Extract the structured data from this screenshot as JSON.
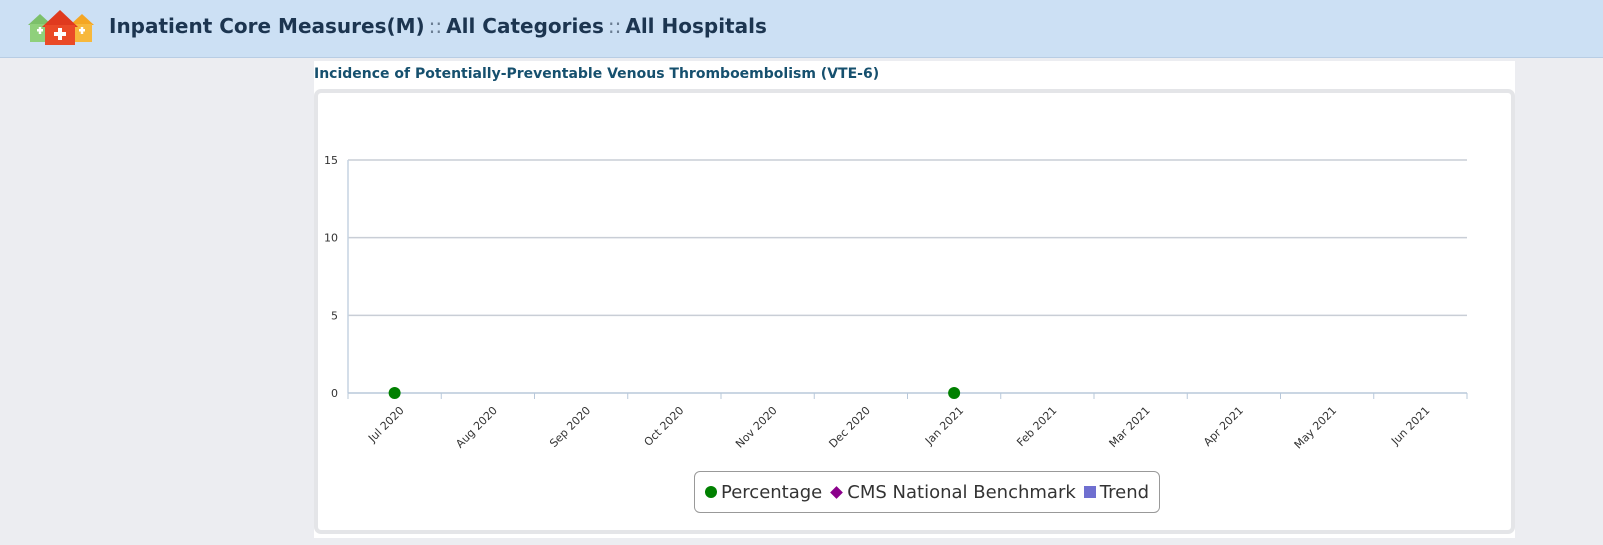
{
  "header": {
    "segments": [
      "Inpatient Core Measures(M)",
      "All Categories",
      "All Hospitals"
    ],
    "separator": "::"
  },
  "chart_title": "Incidence of Potentially-Preventable Venous Thromboembolism (VTE-6)",
  "colors": {
    "header_bg": "#cce0f4",
    "percentage": "#008000",
    "benchmark": "#8b008b",
    "trend": "#6f6fd0"
  },
  "legend": {
    "items": [
      {
        "label": "Percentage",
        "symbol": "circle",
        "color": "#008000"
      },
      {
        "label": "CMS National Benchmark",
        "symbol": "diamond",
        "color": "#8b008b"
      },
      {
        "label": "Trend",
        "symbol": "square",
        "color": "#6f6fd0"
      }
    ]
  },
  "chart_data": {
    "type": "scatter",
    "categories": [
      "Jul 2020",
      "Aug 2020",
      "Sep 2020",
      "Oct 2020",
      "Nov 2020",
      "Dec 2020",
      "Jan 2021",
      "Feb 2021",
      "Mar 2021",
      "Apr 2021",
      "May 2021",
      "Jun 2021"
    ],
    "series": [
      {
        "name": "Percentage",
        "values": [
          0,
          null,
          null,
          null,
          null,
          null,
          0,
          null,
          null,
          null,
          null,
          null
        ]
      },
      {
        "name": "CMS National Benchmark",
        "values": []
      },
      {
        "name": "Trend",
        "values": []
      }
    ],
    "yticks": [
      0,
      5,
      10,
      15
    ],
    "ylim": [
      0,
      15
    ],
    "grid": true,
    "legend_position": "bottom-center"
  }
}
